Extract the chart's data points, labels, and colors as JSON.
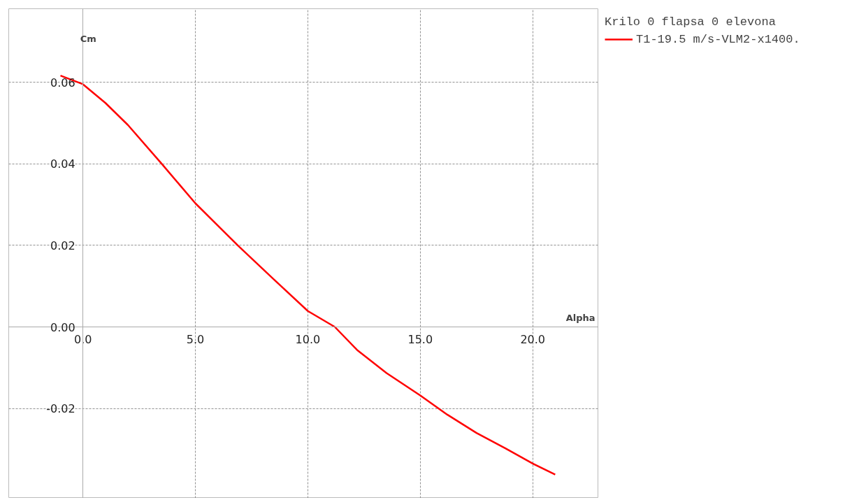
{
  "chart_data": {
    "type": "line",
    "xlabel": "Alpha",
    "ylabel": "Cm",
    "legend_title": "Krilo 0 flapsa 0 elevona",
    "xlim": [
      -3.3,
      22.9
    ],
    "ylim": [
      -0.042,
      0.078
    ],
    "xticks": [
      {
        "value": 0,
        "label": "0.0"
      },
      {
        "value": 5,
        "label": "5.0"
      },
      {
        "value": 10,
        "label": "10.0"
      },
      {
        "value": 15,
        "label": "15.0"
      },
      {
        "value": 20,
        "label": "20.0"
      }
    ],
    "yticks": [
      {
        "value": -0.02,
        "label": "-0.02"
      },
      {
        "value": 0,
        "label": "0.00"
      },
      {
        "value": 0.02,
        "label": "0.02"
      },
      {
        "value": 0.04,
        "label": "0.04"
      },
      {
        "value": 0.06,
        "label": "0.06"
      }
    ],
    "grid": true,
    "legend": "top right",
    "line_style": "solid",
    "marker": "none",
    "series": [
      {
        "name": "T1-19.5 m/s-VLM2-x1400.",
        "color": "#ff0000",
        "x": [
          -1.0,
          0.0,
          1.0,
          2.0,
          3.5,
          5.0,
          6.9,
          8.5,
          10.0,
          11.2,
          12.2,
          13.5,
          15.0,
          16.2,
          17.5,
          18.8,
          20.0,
          21.0
        ],
        "values": [
          0.0616,
          0.0595,
          0.0549,
          0.0495,
          0.04,
          0.0303,
          0.0199,
          0.0116,
          0.0039,
          0.0,
          -0.0057,
          -0.0113,
          -0.0168,
          -0.0215,
          -0.026,
          -0.0298,
          -0.0335,
          -0.0362
        ]
      }
    ]
  }
}
